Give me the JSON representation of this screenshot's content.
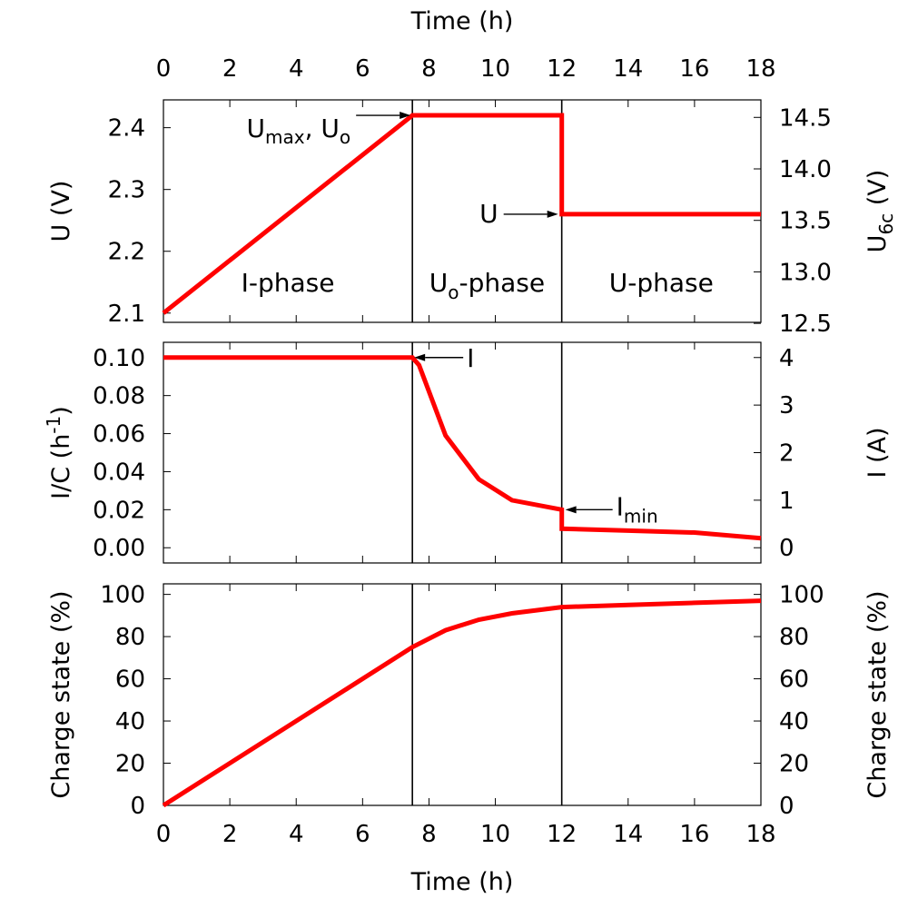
{
  "chart_data": [
    {
      "type": "line",
      "id": "voltage",
      "xlabel_top": "Time (h)",
      "ylabel": "U (V)",
      "y2label": "U",
      "y2label_sub": "6c",
      "y2label_suffix": " (V)",
      "xlim": [
        0,
        18
      ],
      "ylim": [
        2.085,
        2.445
      ],
      "y2lim": [
        12.51,
        14.67
      ],
      "x_ticks": [
        0,
        2,
        4,
        6,
        8,
        10,
        12,
        14,
        16,
        18
      ],
      "x_tick_labels": [
        "0",
        "2",
        "4",
        "6",
        "8",
        "10",
        "12",
        "14",
        "16",
        "18"
      ],
      "y_ticks": [
        2.1,
        2.2,
        2.3,
        2.4
      ],
      "y_tick_labels": [
        "2.1",
        "2.2",
        "2.3",
        "2.4"
      ],
      "y2_ticks": [
        12.5,
        13.0,
        13.5,
        14.0,
        14.5
      ],
      "y2_tick_labels": [
        "12.5",
        "13.0",
        "13.5",
        "14.0",
        "14.5"
      ],
      "dividers": [
        7.5,
        12
      ],
      "series": [
        {
          "x": [
            0,
            7.5,
            12,
            12,
            18
          ],
          "y": [
            2.1,
            2.42,
            2.42,
            2.26,
            2.26
          ]
        }
      ],
      "annotations": [
        {
          "label": "U",
          "sub": "max",
          "label2": ", U",
          "sub2": "o",
          "x": 7.5,
          "y": 2.42
        },
        {
          "label": "U",
          "x": 12,
          "y": 2.26
        }
      ],
      "phases": [
        {
          "label": "I-phase",
          "x": 3.75,
          "y": 2.15
        },
        {
          "label": "U",
          "sub": "o",
          "suffix": "-phase",
          "x": 9.75,
          "y": 2.15
        },
        {
          "label": "U-phase",
          "x": 15,
          "y": 2.15
        }
      ]
    },
    {
      "type": "line",
      "id": "current",
      "ylabel": "I/C (h",
      "ylabel_sup": "-1",
      "ylabel_suffix": ")",
      "y2label": "I (A)",
      "xlim": [
        0,
        18
      ],
      "ylim": [
        -0.008,
        0.108
      ],
      "y2lim": [
        -0.32,
        4.32
      ],
      "y_ticks": [
        0.0,
        0.02,
        0.04,
        0.06,
        0.08,
        0.1
      ],
      "y_tick_labels": [
        "0.00",
        "0.02",
        "0.04",
        "0.06",
        "0.08",
        "0.10"
      ],
      "y2_ticks": [
        0,
        1,
        2,
        3,
        4
      ],
      "y2_tick_labels": [
        "0",
        "1",
        "2",
        "3",
        "4"
      ],
      "dividers": [
        7.5,
        12
      ],
      "series": [
        {
          "x": [
            0,
            7.5,
            7.7,
            8.5,
            9.5,
            10.5,
            12,
            12,
            14,
            16,
            18
          ],
          "y": [
            0.1,
            0.1,
            0.096,
            0.059,
            0.036,
            0.025,
            0.02,
            0.01,
            0.009,
            0.008,
            0.005
          ]
        }
      ],
      "annotations": [
        {
          "label": "I",
          "x": 7.5,
          "y": 0.1
        },
        {
          "label": "I",
          "sub": "min",
          "x": 12,
          "y": 0.02
        }
      ]
    },
    {
      "type": "line",
      "id": "charge",
      "xlabel": "Time (h)",
      "ylabel": "Charge state (%)",
      "y2label": "Charge state (%)",
      "xlim": [
        0,
        18
      ],
      "ylim": [
        0,
        105
      ],
      "y2lim": [
        0,
        105
      ],
      "x_ticks": [
        0,
        2,
        4,
        6,
        8,
        10,
        12,
        14,
        16,
        18
      ],
      "x_tick_labels": [
        "0",
        "2",
        "4",
        "6",
        "8",
        "10",
        "12",
        "14",
        "16",
        "18"
      ],
      "y_ticks": [
        0,
        20,
        40,
        60,
        80,
        100
      ],
      "y_tick_labels": [
        "0",
        "20",
        "40",
        "60",
        "80",
        "100"
      ],
      "y2_ticks": [
        0,
        20,
        40,
        60,
        80,
        100
      ],
      "y2_tick_labels": [
        "0",
        "20",
        "40",
        "60",
        "80",
        "100"
      ],
      "dividers": [
        7.5,
        12
      ],
      "series": [
        {
          "x": [
            0,
            7.5,
            8.5,
            9.5,
            10.5,
            12,
            14,
            16,
            18
          ],
          "y": [
            0,
            75,
            83,
            88,
            91,
            94,
            95,
            96,
            97
          ]
        }
      ]
    }
  ]
}
